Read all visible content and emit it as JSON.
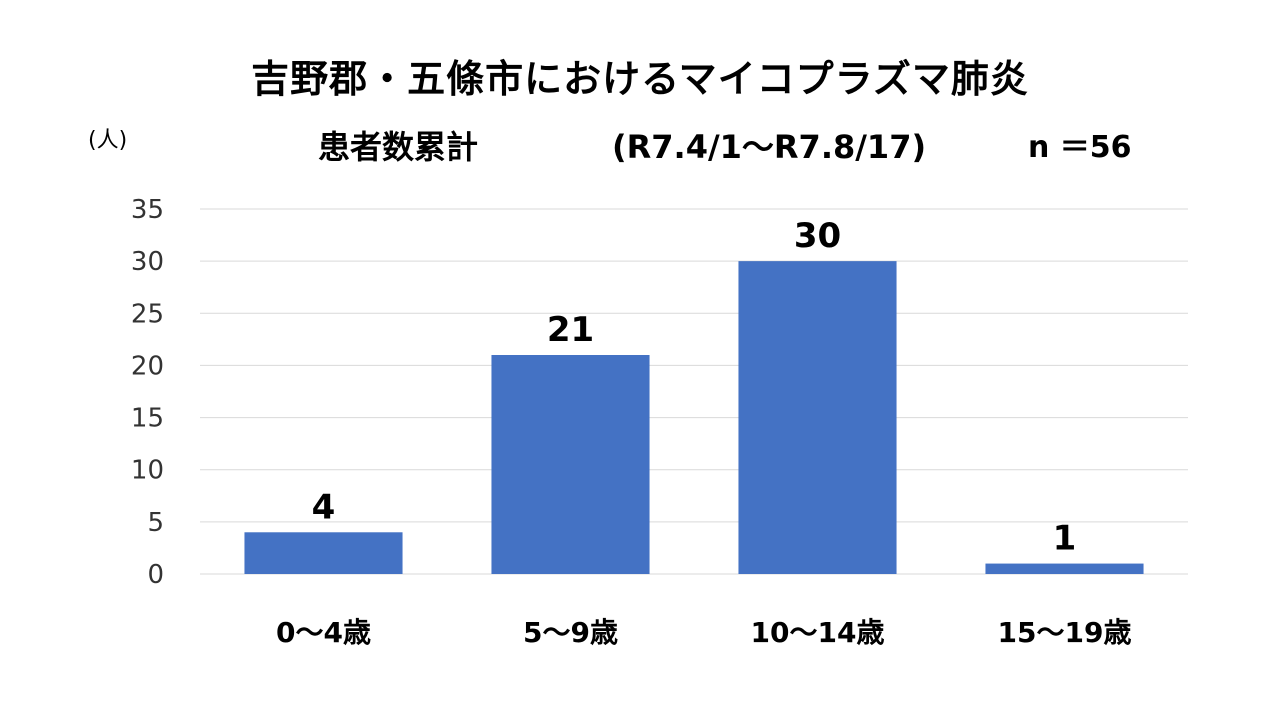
{
  "title_line1": "吉野郡・五條市におけるマイコプラズマ肺炎",
  "title_line2_main": "患者数累計",
  "title_line2_period": "(R7.4/1～R7.8/17)",
  "title_line2_n": "n ＝56",
  "unit_label": "(人)",
  "chart_data": {
    "type": "bar",
    "categories": [
      "0～4歳",
      "5～9歳",
      "10～14歳",
      "15～19歳"
    ],
    "values": [
      4,
      21,
      30,
      1
    ],
    "title": "吉野郡・五條市におけるマイコプラズマ肺炎 患者数累計 (R7.4/1～R7.8/17) n ＝56",
    "xlabel": "",
    "ylabel": "(人)",
    "ylim": [
      0,
      35
    ],
    "yticks": [
      0,
      5,
      10,
      15,
      20,
      25,
      30,
      35
    ],
    "grid": true,
    "data_labels": true,
    "bar_color": "#4472C4",
    "grid_color": "#D9D9D9"
  }
}
